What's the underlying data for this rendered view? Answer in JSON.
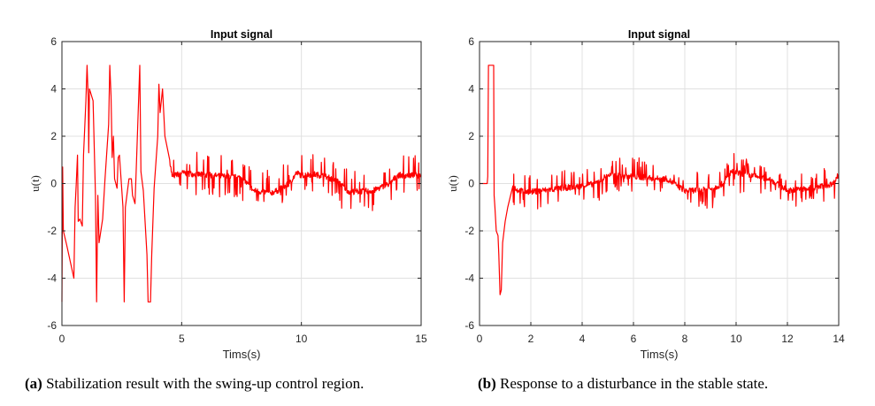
{
  "chart_data": [
    {
      "type": "line",
      "title": "Input signal",
      "xlabel": "Tims(s)",
      "ylabel": "u(t)",
      "xlim": [
        0,
        15
      ],
      "ylim": [
        -6,
        6
      ],
      "xticks": [
        0,
        5,
        10,
        15
      ],
      "yticks": [
        -6,
        -4,
        -2,
        0,
        2,
        4,
        6
      ],
      "grid": true,
      "color": "#ff0000",
      "noise_after_t": 4.5,
      "noise_amplitude": 0.35,
      "points": [
        [
          0,
          -5
        ],
        [
          0.03,
          0.7
        ],
        [
          0.06,
          -2
        ],
        [
          0.2,
          -2.6
        ],
        [
          0.5,
          -4
        ],
        [
          0.55,
          -1
        ],
        [
          0.6,
          0
        ],
        [
          0.65,
          1.2
        ],
        [
          0.68,
          -1.6
        ],
        [
          0.75,
          -1.5
        ],
        [
          0.85,
          -1.8
        ],
        [
          0.9,
          1.2
        ],
        [
          1.0,
          3.5
        ],
        [
          1.05,
          5
        ],
        [
          1.1,
          3.5
        ],
        [
          1.12,
          1.3
        ],
        [
          1.15,
          4
        ],
        [
          1.3,
          3.5
        ],
        [
          1.4,
          -0.5
        ],
        [
          1.45,
          -5
        ],
        [
          1.5,
          -0.5
        ],
        [
          1.55,
          -2.5
        ],
        [
          1.7,
          -1.5
        ],
        [
          1.8,
          0.2
        ],
        [
          1.95,
          2.5
        ],
        [
          2.0,
          5
        ],
        [
          2.05,
          3.7
        ],
        [
          2.1,
          1.1
        ],
        [
          2.15,
          2
        ],
        [
          2.2,
          0.2
        ],
        [
          2.3,
          -0.2
        ],
        [
          2.35,
          1.1
        ],
        [
          2.4,
          1.2
        ],
        [
          2.55,
          -1
        ],
        [
          2.6,
          -5
        ],
        [
          2.65,
          -1
        ],
        [
          2.8,
          0.2
        ],
        [
          2.9,
          0.2
        ],
        [
          2.95,
          -0.5
        ],
        [
          3.05,
          -0.85
        ],
        [
          3.1,
          0.5
        ],
        [
          3.25,
          5
        ],
        [
          3.3,
          0.5
        ],
        [
          3.4,
          -0.3
        ],
        [
          3.55,
          -3
        ],
        [
          3.6,
          -5
        ],
        [
          3.7,
          -5
        ],
        [
          3.75,
          -3
        ],
        [
          3.85,
          -0.2
        ],
        [
          4.0,
          2
        ],
        [
          4.05,
          4.2
        ],
        [
          4.1,
          3
        ],
        [
          4.2,
          4
        ],
        [
          4.3,
          2
        ],
        [
          4.5,
          1
        ],
        [
          4.6,
          0.3
        ],
        [
          5,
          0.45
        ],
        [
          5.5,
          0.4
        ],
        [
          7.5,
          0.25
        ],
        [
          8,
          -0.3
        ],
        [
          8.7,
          -0.4
        ],
        [
          9,
          -0.3
        ],
        [
          9.5,
          0
        ],
        [
          9.8,
          0.45
        ],
        [
          10,
          0.35
        ],
        [
          10.5,
          0.4
        ],
        [
          11,
          0.3
        ],
        [
          11.5,
          0.1
        ],
        [
          12,
          -0.35
        ],
        [
          13,
          -0.3
        ],
        [
          13.7,
          0
        ],
        [
          14,
          0.35
        ],
        [
          15,
          0.35
        ]
      ]
    },
    {
      "type": "line",
      "title": "Input signal",
      "xlabel": "Tims(s)",
      "ylabel": "u(t)",
      "xlim": [
        0,
        14
      ],
      "ylim": [
        -6,
        6
      ],
      "xticks": [
        0,
        2,
        4,
        6,
        8,
        10,
        12,
        14
      ],
      "yticks": [
        -6,
        -4,
        -2,
        0,
        2,
        4,
        6
      ],
      "grid": true,
      "color": "#ff0000",
      "noise_after_t": 1.3,
      "noise_amplitude": 0.3,
      "points": [
        [
          0,
          0
        ],
        [
          0.3,
          0
        ],
        [
          0.32,
          0.3
        ],
        [
          0.35,
          5
        ],
        [
          0.55,
          5
        ],
        [
          0.57,
          -0.5
        ],
        [
          0.6,
          -1
        ],
        [
          0.65,
          -2
        ],
        [
          0.72,
          -2.2
        ],
        [
          0.75,
          -3
        ],
        [
          0.8,
          -4.7
        ],
        [
          0.85,
          -4.5
        ],
        [
          0.9,
          -2.5
        ],
        [
          1.0,
          -1.6
        ],
        [
          1.1,
          -1
        ],
        [
          1.3,
          -0.1
        ],
        [
          1.5,
          -0.3
        ],
        [
          2,
          -0.35
        ],
        [
          4,
          -0.1
        ],
        [
          4.5,
          0
        ],
        [
          5,
          0.35
        ],
        [
          6,
          0.3
        ],
        [
          7,
          0.2
        ],
        [
          7.3,
          0.2
        ],
        [
          8,
          -0.3
        ],
        [
          9,
          -0.25
        ],
        [
          9.5,
          0
        ],
        [
          9.8,
          0.5
        ],
        [
          10.5,
          0.35
        ],
        [
          11.3,
          0.2
        ],
        [
          12,
          -0.3
        ],
        [
          13,
          -0.2
        ],
        [
          13.8,
          0
        ],
        [
          14,
          0.4
        ]
      ]
    }
  ],
  "captions": [
    {
      "label": "(a)",
      "text": " Stabilization result with the swing-up control region."
    },
    {
      "label": "(b)",
      "text": " Response to a disturbance in the stable state."
    }
  ]
}
